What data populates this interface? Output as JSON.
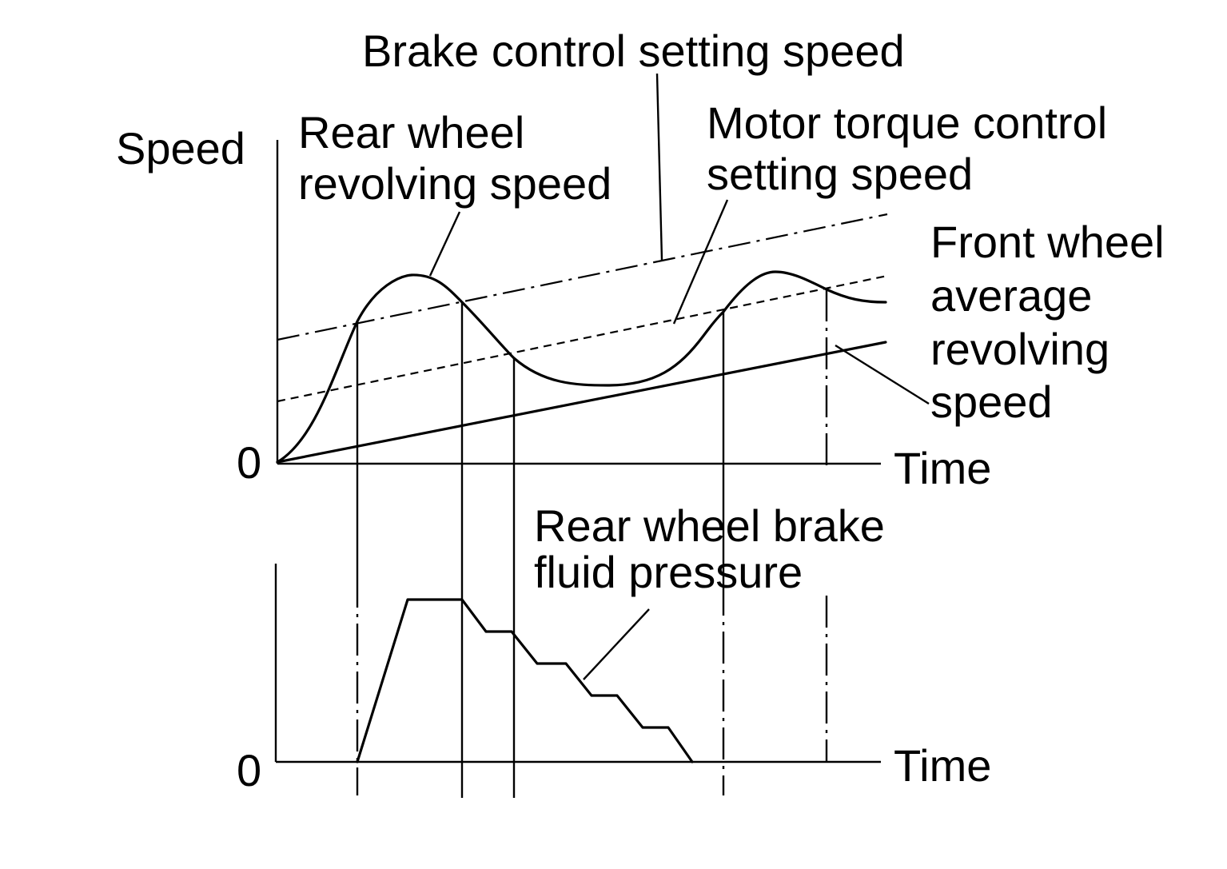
{
  "diagram": {
    "upper": {
      "y_axis_label": "Speed",
      "x_axis_label": "Time",
      "origin_label": "0",
      "curves": {
        "brake_control": "Brake control setting speed",
        "motor_torque_line1": "Motor torque control",
        "motor_torque_line2": "setting speed",
        "rear_wheel_line1": "Rear wheel",
        "rear_wheel_line2": "revolving speed",
        "front_wheel_line1": "Front wheel",
        "front_wheel_line2": "average",
        "front_wheel_line3": "revolving",
        "front_wheel_line4": "speed"
      }
    },
    "lower": {
      "x_axis_label": "Time",
      "origin_label": "0",
      "curve_line1": "Rear wheel brake",
      "curve_line2": "fluid pressure"
    }
  }
}
